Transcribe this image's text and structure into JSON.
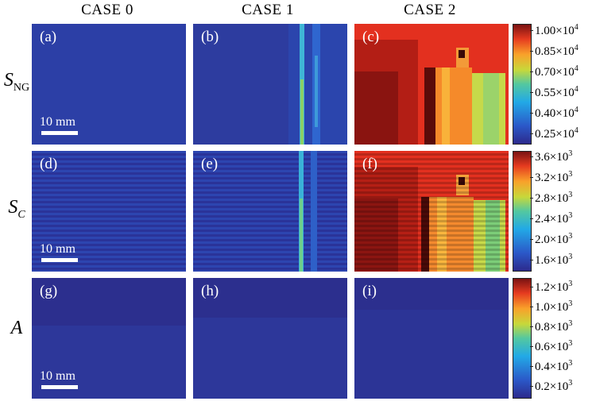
{
  "columns": [
    {
      "label": "CASE 0"
    },
    {
      "label": "CASE 1"
    },
    {
      "label": "CASE 2"
    }
  ],
  "rows": [
    {
      "symbol": "S",
      "subscript": "NG",
      "sub_italic": false
    },
    {
      "symbol": "S",
      "subscript": "C",
      "sub_italic": true
    },
    {
      "symbol": "A",
      "subscript": "",
      "sub_italic": false
    }
  ],
  "panels": [
    {
      "letter": "(a)",
      "scalebar": "10 mm"
    },
    {
      "letter": "(b)",
      "scalebar": ""
    },
    {
      "letter": "(c)",
      "scalebar": ""
    },
    {
      "letter": "(d)",
      "scalebar": "10 mm"
    },
    {
      "letter": "(e)",
      "scalebar": ""
    },
    {
      "letter": "(f)",
      "scalebar": ""
    },
    {
      "letter": "(g)",
      "scalebar": "10 mm"
    },
    {
      "letter": "(h)",
      "scalebar": ""
    },
    {
      "letter": "(i)",
      "scalebar": ""
    }
  ],
  "colorbars": [
    {
      "ticks": [
        {
          "mant": "1.00×10",
          "exp": "4"
        },
        {
          "mant": "0.85×10",
          "exp": "4"
        },
        {
          "mant": "0.70×10",
          "exp": "4"
        },
        {
          "mant": "0.55×10",
          "exp": "4"
        },
        {
          "mant": "0.40×10",
          "exp": "4"
        },
        {
          "mant": "0.25×10",
          "exp": "4"
        }
      ]
    },
    {
      "ticks": [
        {
          "mant": "3.6×10",
          "exp": "3"
        },
        {
          "mant": "3.2×10",
          "exp": "3"
        },
        {
          "mant": "2.8×10",
          "exp": "3"
        },
        {
          "mant": "2.4×10",
          "exp": "3"
        },
        {
          "mant": "2.0×10",
          "exp": "3"
        },
        {
          "mant": "1.6×10",
          "exp": "3"
        }
      ]
    },
    {
      "ticks": [
        {
          "mant": "1.2×10",
          "exp": "3"
        },
        {
          "mant": "1.0×10",
          "exp": "3"
        },
        {
          "mant": "0.8×10",
          "exp": "3"
        },
        {
          "mant": "0.6×10",
          "exp": "3"
        },
        {
          "mant": "0.4×10",
          "exp": "3"
        },
        {
          "mant": "0.2×10",
          "exp": "3"
        }
      ]
    }
  ],
  "colors": {
    "jet": [
      "#2c2a8c",
      "#2b58c8",
      "#22a9e6",
      "#53c8a0",
      "#c7d83a",
      "#f9a12a",
      "#e53a1f",
      "#7a1212"
    ],
    "panel_base": "#2f3a9e"
  }
}
